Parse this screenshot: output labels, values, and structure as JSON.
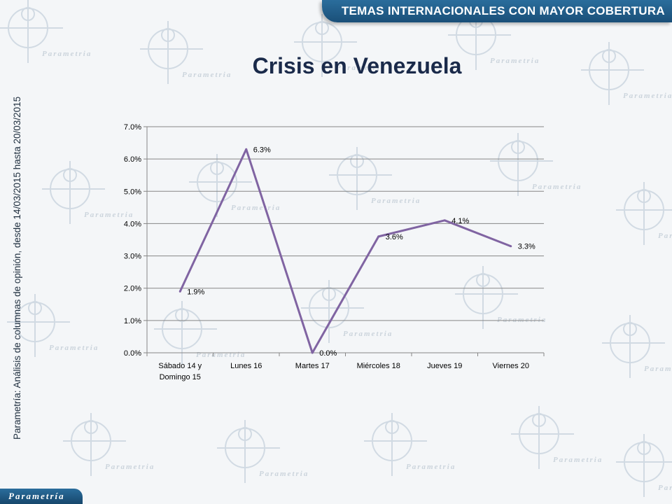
{
  "header": {
    "banner_text": "TEMAS INTERNACIONALES CON MAYOR COBERTURA",
    "title": "Crisis en Venezuela"
  },
  "side_note": "Parametría: Análisis de columnas de opinión, desde 14/03/2015 hasta 20/03/2015",
  "logo_text": "Parametría",
  "watermark_text": "Parametria",
  "colors": {
    "banner": "#1f5f8f",
    "title": "#1a2a4a",
    "series_line": "#8064a2",
    "gridline": "#868686"
  },
  "chart_data": {
    "type": "line",
    "title": "",
    "xlabel": "",
    "ylabel": "",
    "categories": [
      [
        "Sábado 14 y",
        "Domingo 15"
      ],
      [
        "Lunes 16"
      ],
      [
        "Martes 17"
      ],
      [
        "Miércoles 18"
      ],
      [
        "Jueves 19"
      ],
      [
        "Viernes 20"
      ]
    ],
    "values": [
      1.9,
      6.3,
      0.0,
      3.6,
      4.1,
      3.3
    ],
    "data_labels": [
      "1.9%",
      "6.3%",
      "0.0%",
      "3.6%",
      "4.1%",
      "3.3%"
    ],
    "ylim": [
      0,
      7
    ],
    "yticks": [
      0,
      1,
      2,
      3,
      4,
      5,
      6,
      7
    ],
    "ytick_labels": [
      "0.0%",
      "1.0%",
      "2.0%",
      "3.0%",
      "4.0%",
      "5.0%",
      "6.0%",
      "7.0%"
    ],
    "grid": true,
    "legend": "none"
  }
}
